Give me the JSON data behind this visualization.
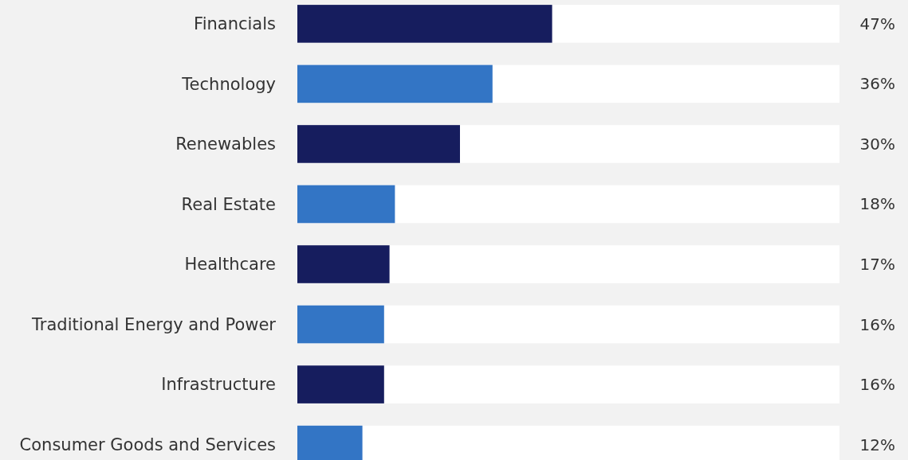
{
  "chart_data": {
    "type": "bar",
    "orientation": "horizontal",
    "categories": [
      "Financials",
      "Technology",
      "Renewables",
      "Real Estate",
      "Healthcare",
      "Traditional Energy and Power",
      "Infrastructure",
      "Consumer Goods and Services"
    ],
    "values": [
      47,
      36,
      30,
      18,
      17,
      16,
      16,
      12
    ],
    "colors": [
      "#161d5e",
      "#3375c5",
      "#161d5e",
      "#3375c5",
      "#161d5e",
      "#3375c5",
      "#161d5e",
      "#3375c5"
    ],
    "value_labels": [
      "47%",
      "36%",
      "30%",
      "18%",
      "17%",
      "16%",
      "16%",
      "12%"
    ],
    "xlim": [
      0,
      100
    ],
    "tick_labels": "y"
  }
}
